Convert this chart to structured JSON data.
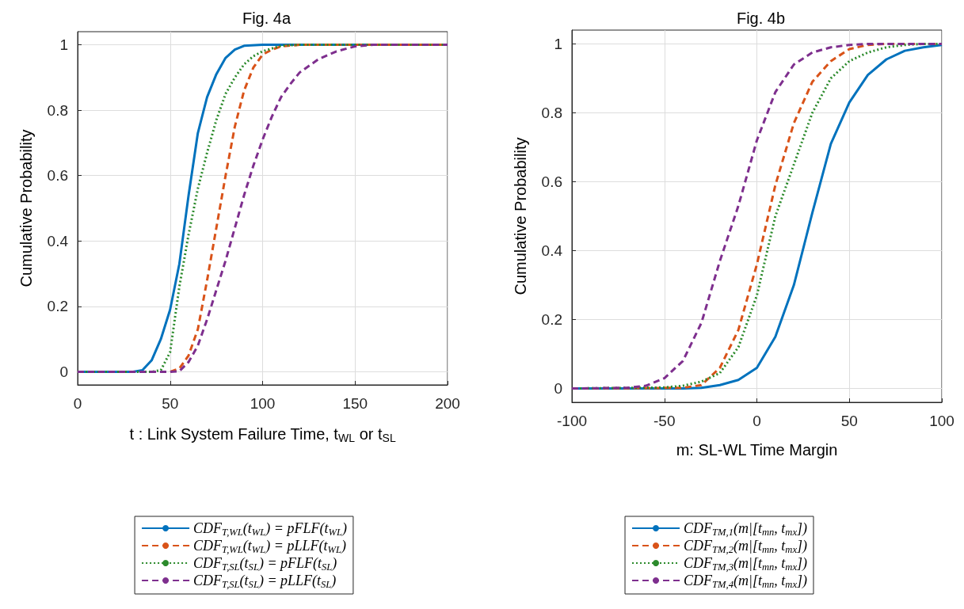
{
  "chart_data": [
    {
      "type": "line",
      "title": "Fig. 4a",
      "xlabel": "t : Link System Failure Time, t$_{WL}$ or t$_{SL}$",
      "ylabel": "Cumulative Probability",
      "xlim": [
        0,
        200
      ],
      "xticks": [
        0,
        50,
        100,
        150,
        200
      ],
      "ylim": [
        -0.04,
        1.04
      ],
      "yticks": [
        0,
        0.2,
        0.4,
        0.6,
        0.8,
        1
      ],
      "grid": true,
      "legend": "bottom",
      "marker": "none",
      "series": [
        {
          "name": "CDF$_{T,WL}$(t$_{WL}$) = pFLF(t$_{WL}$)",
          "color": "#0072bd",
          "line_style": "solid",
          "x": [
            0,
            30,
            35,
            40,
            45,
            50,
            55,
            60,
            65,
            70,
            75,
            80,
            85,
            90,
            100,
            200
          ],
          "values": [
            0,
            0,
            0.005,
            0.035,
            0.1,
            0.19,
            0.33,
            0.54,
            0.73,
            0.84,
            0.91,
            0.96,
            0.985,
            0.997,
            1,
            1
          ]
        },
        {
          "name": "CDF$_{T,WL}$(t$_{WL}$) = pLLF(t$_{WL}$)",
          "color": "#d95319",
          "line_style": "dashed",
          "x": [
            0,
            50,
            55,
            60,
            65,
            70,
            75,
            80,
            85,
            90,
            95,
            100,
            105,
            110,
            120,
            200
          ],
          "values": [
            0,
            0,
            0.01,
            0.05,
            0.13,
            0.28,
            0.44,
            0.6,
            0.75,
            0.86,
            0.93,
            0.97,
            0.985,
            0.995,
            1,
            1
          ]
        },
        {
          "name": "CDF$_{T,SL}$(t$_{SL}$) = pFLF(t$_{SL}$)",
          "color": "#2b8a2b",
          "line_style": "dotted",
          "x": [
            0,
            40,
            45,
            50,
            55,
            60,
            65,
            70,
            75,
            80,
            85,
            90,
            95,
            100,
            110,
            120,
            200
          ],
          "values": [
            0,
            0,
            0.005,
            0.06,
            0.26,
            0.42,
            0.56,
            0.67,
            0.77,
            0.85,
            0.9,
            0.94,
            0.965,
            0.98,
            0.997,
            1,
            1
          ]
        },
        {
          "name": "CDF$_{T,SL}$(t$_{SL}$) = pLLF(t$_{SL}$)",
          "color": "#7e2f8e",
          "line_style": "dashed",
          "x": [
            0,
            50,
            55,
            60,
            65,
            70,
            75,
            80,
            85,
            90,
            95,
            100,
            105,
            110,
            115,
            120,
            130,
            140,
            150,
            160,
            200
          ],
          "values": [
            0,
            0,
            0.002,
            0.03,
            0.08,
            0.16,
            0.25,
            0.34,
            0.44,
            0.54,
            0.63,
            0.71,
            0.78,
            0.84,
            0.88,
            0.915,
            0.955,
            0.98,
            0.995,
            1,
            1
          ]
        }
      ]
    },
    {
      "type": "line",
      "title": "Fig. 4b",
      "xlabel": "m: SL-WL Time Margin",
      "ylabel": "Cumulative Probability",
      "xlim": [
        -100,
        100
      ],
      "xticks": [
        -100,
        -50,
        0,
        50,
        100
      ],
      "ylim": [
        -0.04,
        1.04
      ],
      "yticks": [
        0,
        0.2,
        0.4,
        0.6,
        0.8,
        1
      ],
      "grid": true,
      "legend": "bottom",
      "marker": "none",
      "series": [
        {
          "name": "CDF$_{TM,1}$(m|[t$_{mn}$, t$_{mx}$])",
          "color": "#0072bd",
          "line_style": "solid",
          "x": [
            -100,
            -40,
            -30,
            -20,
            -10,
            0,
            10,
            20,
            30,
            40,
            50,
            60,
            70,
            80,
            90,
            100
          ],
          "values": [
            0,
            0,
            0.002,
            0.01,
            0.025,
            0.06,
            0.15,
            0.3,
            0.51,
            0.71,
            0.83,
            0.91,
            0.955,
            0.98,
            0.99,
            0.997
          ]
        },
        {
          "name": "CDF$_{TM,2}$(m|[t$_{mn}$, t$_{mx}$])",
          "color": "#d95319",
          "line_style": "dashed",
          "x": [
            -100,
            -40,
            -30,
            -20,
            -10,
            0,
            10,
            20,
            30,
            40,
            50,
            60,
            70,
            100
          ],
          "values": [
            0,
            0.002,
            0.01,
            0.06,
            0.17,
            0.36,
            0.59,
            0.77,
            0.89,
            0.95,
            0.985,
            0.997,
            1,
            1
          ]
        },
        {
          "name": "CDF$_{TM,3}$(m|[t$_{mn}$, t$_{mx}$])",
          "color": "#2b8a2b",
          "line_style": "dotted",
          "x": [
            -100,
            -50,
            -40,
            -30,
            -20,
            -10,
            0,
            10,
            20,
            30,
            40,
            50,
            60,
            70,
            80,
            90,
            100
          ],
          "values": [
            0,
            0.003,
            0.008,
            0.02,
            0.045,
            0.12,
            0.27,
            0.5,
            0.65,
            0.8,
            0.9,
            0.95,
            0.975,
            0.99,
            0.997,
            1,
            1
          ]
        },
        {
          "name": "CDF$_{TM,4}$(m|[t$_{mn}$, t$_{mx}$])",
          "color": "#7e2f8e",
          "line_style": "dashed",
          "x": [
            -100,
            -70,
            -60,
            -50,
            -40,
            -30,
            -20,
            -10,
            0,
            10,
            20,
            30,
            40,
            50,
            60,
            100
          ],
          "values": [
            0,
            0.002,
            0.008,
            0.03,
            0.08,
            0.19,
            0.37,
            0.53,
            0.72,
            0.86,
            0.94,
            0.975,
            0.99,
            0.997,
            1,
            1
          ]
        }
      ]
    }
  ]
}
